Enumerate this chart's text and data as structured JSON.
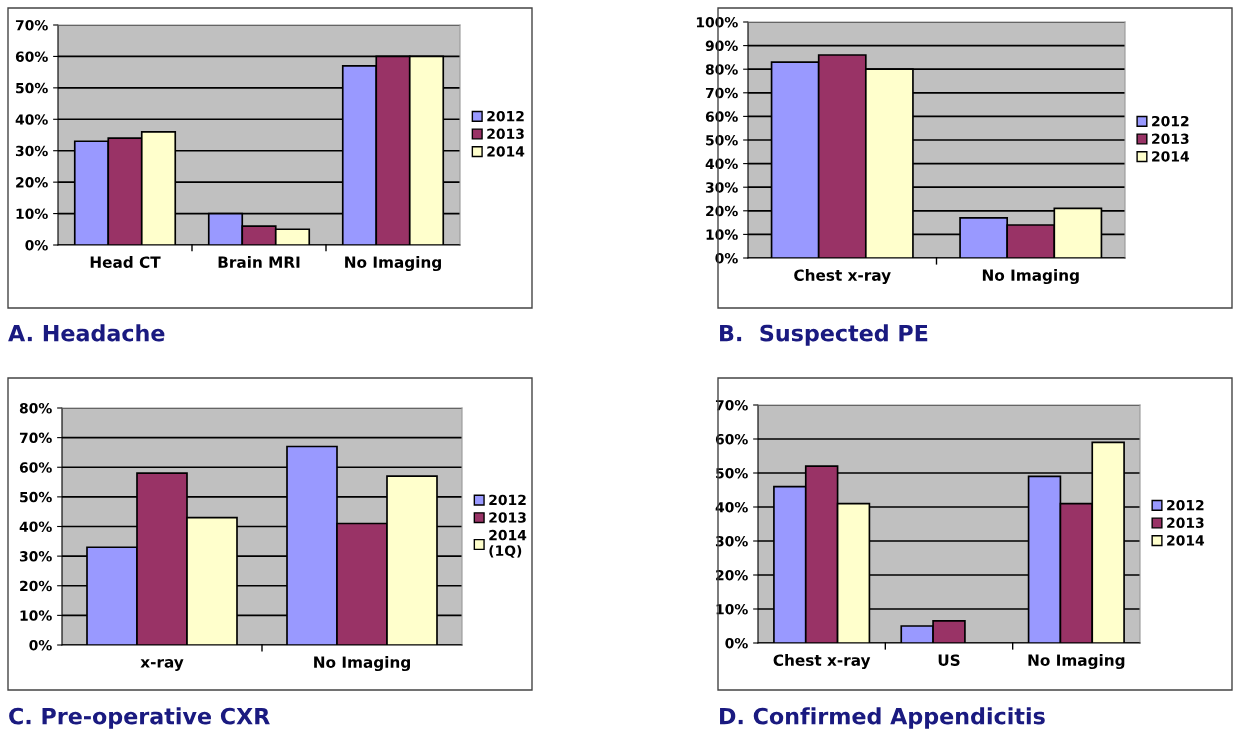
{
  "chart_data": [
    {
      "type": "bar",
      "title": "A. Headache",
      "categories": [
        "Head CT",
        "Brain MRI",
        "No Imaging"
      ],
      "legend": "right",
      "grid": "y",
      "ylim": [
        0,
        70
      ],
      "yticks": [
        {
          "value": 0,
          "label": "0%"
        },
        {
          "value": 10,
          "label": "10%"
        },
        {
          "value": 20,
          "label": "20%"
        },
        {
          "value": 30,
          "label": "30%"
        },
        {
          "value": 40,
          "label": "40%"
        },
        {
          "value": 50,
          "label": "50%"
        },
        {
          "value": 60,
          "label": "60%"
        },
        {
          "value": 70,
          "label": "70%"
        }
      ],
      "series": [
        {
          "name": "2012",
          "color": "#9999ff",
          "values": [
            33,
            10,
            57
          ]
        },
        {
          "name": "2013",
          "color": "#993366",
          "values": [
            34,
            6,
            60
          ]
        },
        {
          "name": "2014",
          "color": "#ffffcc",
          "values": [
            36,
            5,
            60
          ]
        }
      ]
    },
    {
      "type": "bar",
      "title": "B.  Suspected PE",
      "categories": [
        "Chest x-ray",
        "No Imaging"
      ],
      "legend": "right",
      "grid": "y",
      "ylim": [
        0,
        100
      ],
      "yticks": [
        {
          "value": 0,
          "label": "0%"
        },
        {
          "value": 10,
          "label": "10%"
        },
        {
          "value": 20,
          "label": "20%"
        },
        {
          "value": 30,
          "label": "30%"
        },
        {
          "value": 40,
          "label": "40%"
        },
        {
          "value": 50,
          "label": "50%"
        },
        {
          "value": 60,
          "label": "60%"
        },
        {
          "value": 70,
          "label": "70%"
        },
        {
          "value": 80,
          "label": "80%"
        },
        {
          "value": 90,
          "label": "90%"
        },
        {
          "value": 100,
          "label": "100%"
        }
      ],
      "series": [
        {
          "name": "2012",
          "color": "#9999ff",
          "values": [
            83,
            17
          ]
        },
        {
          "name": "2013",
          "color": "#993366",
          "values": [
            86,
            14
          ]
        },
        {
          "name": "2014",
          "color": "#ffffcc",
          "values": [
            80,
            21
          ]
        }
      ]
    },
    {
      "type": "bar",
      "title": "C. Pre-operative CXR",
      "categories": [
        "x-ray",
        "No Imaging"
      ],
      "legend": "right",
      "grid": "y",
      "ylim": [
        0,
        80
      ],
      "yticks": [
        {
          "value": 0,
          "label": "0%"
        },
        {
          "value": 10,
          "label": "10%"
        },
        {
          "value": 20,
          "label": "20%"
        },
        {
          "value": 30,
          "label": "30%"
        },
        {
          "value": 40,
          "label": "40%"
        },
        {
          "value": 50,
          "label": "50%"
        },
        {
          "value": 60,
          "label": "60%"
        },
        {
          "value": 70,
          "label": "70%"
        },
        {
          "value": 80,
          "label": "80%"
        }
      ],
      "series": [
        {
          "name": "2012",
          "color": "#9999ff",
          "values": [
            33,
            67
          ]
        },
        {
          "name": "2013",
          "color": "#993366",
          "values": [
            58,
            41
          ]
        },
        {
          "name": "2014\n(1Q)",
          "color": "#ffffcc",
          "values": [
            43,
            57
          ]
        }
      ]
    },
    {
      "type": "bar",
      "title": "D. Confirmed Appendicitis",
      "categories": [
        "Chest x-ray",
        "US",
        "No Imaging"
      ],
      "legend": "right",
      "grid": "y",
      "ylim": [
        0,
        70
      ],
      "yticks": [
        {
          "value": 0,
          "label": "0%"
        },
        {
          "value": 10,
          "label": "10%"
        },
        {
          "value": 20,
          "label": "20%"
        },
        {
          "value": 30,
          "label": "30%"
        },
        {
          "value": 40,
          "label": "40%"
        },
        {
          "value": 50,
          "label": "50%"
        },
        {
          "value": 60,
          "label": "60%"
        },
        {
          "value": 70,
          "label": "70%"
        }
      ],
      "series": [
        {
          "name": "2012",
          "color": "#9999ff",
          "values": [
            46,
            5,
            49
          ]
        },
        {
          "name": "2013",
          "color": "#993366",
          "values": [
            52,
            6.5,
            41
          ]
        },
        {
          "name": "2014",
          "color": "#ffffcc",
          "values": [
            41,
            null,
            59
          ]
        }
      ]
    }
  ]
}
